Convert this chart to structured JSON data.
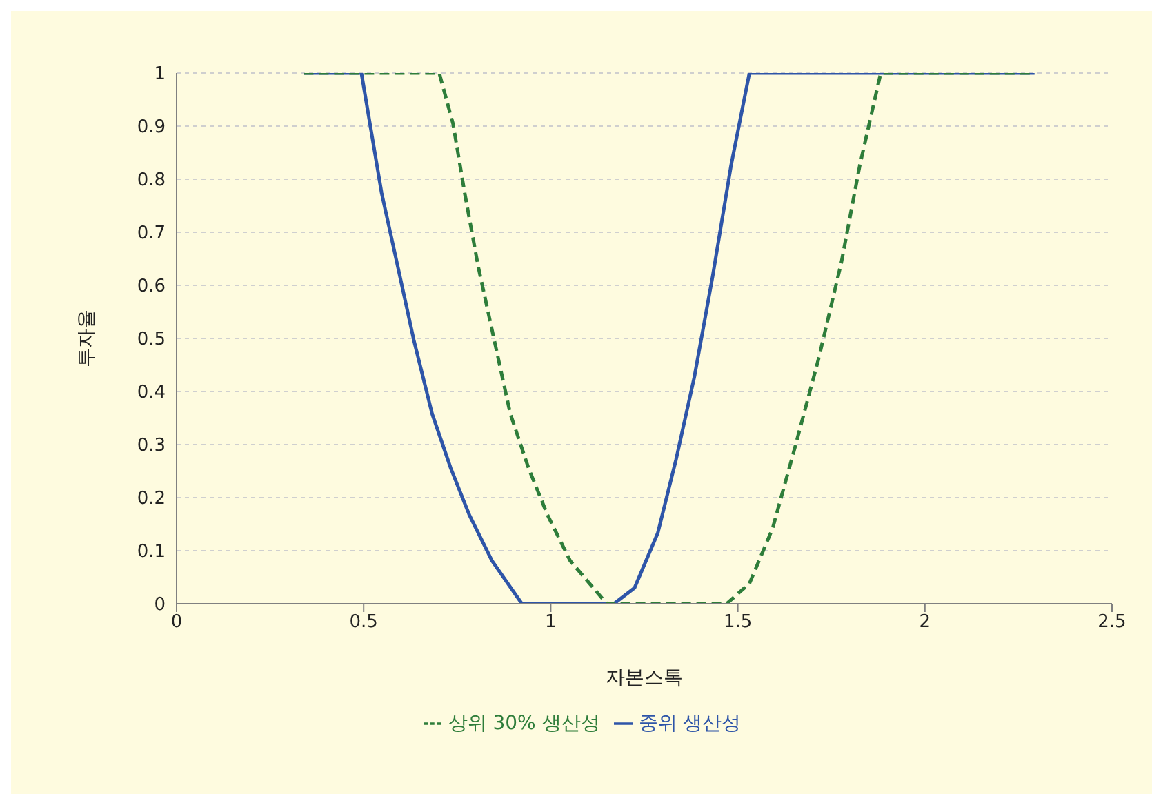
{
  "chart_data": {
    "type": "line",
    "xlabel": "자본스톡",
    "ylabel": "투자율",
    "xlim": [
      0,
      2.5
    ],
    "xticks": [
      0,
      0.5,
      1,
      1.5,
      2,
      2.5
    ],
    "ylim": [
      0,
      1
    ],
    "yticks": [
      0,
      0.1,
      0.2,
      0.3,
      0.4,
      0.5,
      0.6,
      0.7,
      0.8,
      0.9,
      1
    ],
    "grid": "y",
    "legend": "bottom",
    "marker": "none",
    "series": [
      {
        "name": "중위 생산성",
        "color": "#2e55a8",
        "line_style": "solid",
        "x": [
          0.34,
          0.494,
          0.548,
          0.591,
          0.634,
          0.683,
          0.733,
          0.782,
          0.843,
          0.923,
          1.169,
          1.224,
          1.286,
          1.335,
          1.384,
          1.433,
          1.482,
          1.531,
          2.293
        ],
        "values": [
          1,
          1,
          0.774,
          0.636,
          0.497,
          0.358,
          0.255,
          0.168,
          0.081,
          0,
          0,
          0.03,
          0.133,
          0.272,
          0.428,
          0.618,
          0.826,
          1,
          1
        ]
      },
      {
        "name": "상위 30% 생산성",
        "color": "#2e7d3a",
        "line_style": "dashed",
        "x": [
          0.34,
          0.702,
          0.739,
          0.77,
          0.806,
          0.849,
          0.892,
          0.941,
          0.991,
          1.052,
          1.15,
          1.47,
          1.531,
          1.593,
          1.654,
          1.716,
          1.777,
          1.826,
          1.882,
          2.293
        ],
        "values": [
          1,
          1,
          0.904,
          0.774,
          0.636,
          0.497,
          0.358,
          0.255,
          0.168,
          0.081,
          0,
          0,
          0.038,
          0.142,
          0.298,
          0.462,
          0.644,
          0.826,
          1,
          1
        ]
      }
    ]
  }
}
